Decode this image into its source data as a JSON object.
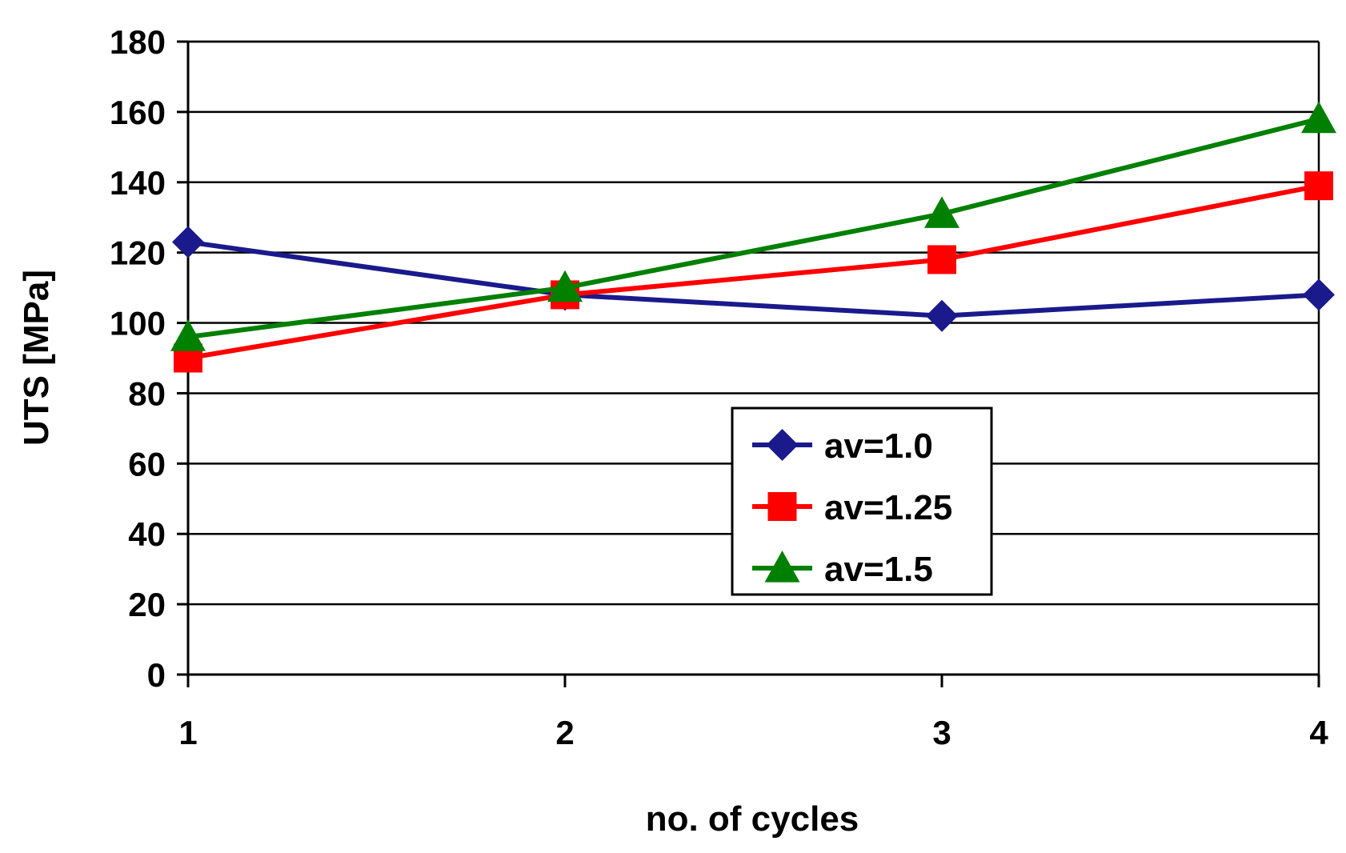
{
  "chart_data": {
    "type": "line",
    "title": "",
    "xlabel": "no. of cycles",
    "ylabel": "UTS [MPa]",
    "x": [
      1,
      2,
      3,
      4
    ],
    "x_tick_labels": [
      "1",
      "2",
      "3",
      "4"
    ],
    "ylim": [
      0,
      180
    ],
    "y_tick_values": [
      0,
      20,
      40,
      60,
      80,
      100,
      120,
      140,
      160,
      180
    ],
    "y_tick_labels": [
      "0",
      "20",
      "40",
      "60",
      "80",
      "100",
      "120",
      "140",
      "160",
      "180"
    ],
    "grid": true,
    "legend_position": "center-right",
    "series": [
      {
        "name": "av=1.0",
        "values": [
          123,
          108,
          102,
          108
        ],
        "color": "#1a1a8c",
        "marker": "diamond"
      },
      {
        "name": "av=1.25",
        "values": [
          90,
          108,
          118,
          139
        ],
        "color": "#ff0000",
        "marker": "square"
      },
      {
        "name": "av=1.5",
        "values": [
          96,
          110,
          131,
          158
        ],
        "color": "#008000",
        "marker": "triangle"
      }
    ]
  }
}
